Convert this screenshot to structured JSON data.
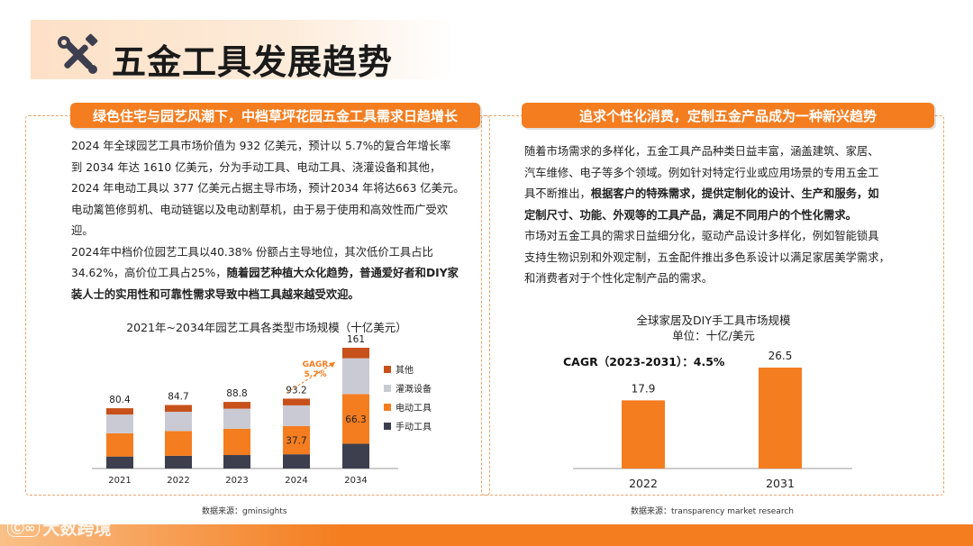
{
  "page": {
    "title": "五金工具发展趋势"
  },
  "left": {
    "header": "绿色住宅与园艺风潮下，中档草坪花园五金工具需求日趋增长",
    "lines": [
      [
        {
          "t": "2024 年全球园艺工具市场价值为 932 亿美元，预计以 5.7%的复合年增长率",
          "b": false
        }
      ],
      [
        {
          "t": "到 2034 年达 1610 亿美元，分为手动工具、电动工具、浇灌设备和其他，",
          "b": false
        }
      ],
      [
        {
          "t": "2024 年电动工具以 377 亿美元占据主导市场，预计2034 年将达663 亿美元。",
          "b": false
        }
      ],
      [
        {
          "t": "电动篱笆修剪机、电动链锯以及电动割草机，由于易于使用和高效性而广受欢",
          "b": false
        }
      ],
      [
        {
          "t": "迎。",
          "b": false
        }
      ],
      [
        {
          "t": "2024年中档价位园艺工具以40.38% 份额占主导地位，其次低价工具占比",
          "b": false
        }
      ],
      [
        {
          "t": "34.62%，高价位工具占25%，",
          "b": false
        },
        {
          "t": "随着园艺种植大众化趋势，普通爱好者和DIY家",
          "b": true
        }
      ],
      [
        {
          "t": "装人士的实用性和可靠性需求导致中档工具越来越受欢迎。",
          "b": true
        }
      ]
    ],
    "source": "数据来源：gminsights"
  },
  "right": {
    "header": "追求个性化消费，定制五金产品成为一种新兴趋势",
    "lines": [
      [
        {
          "t": "随着市场需求的多样化，五金工具产品种类日益丰富，涵盖建筑、家居、",
          "b": false
        }
      ],
      [
        {
          "t": "汽车维修、电子等多个领域。例如针对特定行业或应用场景的专用五金工",
          "b": false
        }
      ],
      [
        {
          "t": "具不断推出，",
          "b": false
        },
        {
          "t": "根据客户的特殊需求，提供定制化的设计、生产和服务，如",
          "b": true
        }
      ],
      [
        {
          "t": "定制尺寸、功能、外观等的工具产品，满足不同用户的个性化需求。",
          "b": true
        }
      ],
      [
        {
          "t": "市场对五金工具的需求日益细分化，驱动产品设计多样化，例如智能锁具",
          "b": false
        }
      ],
      [
        {
          "t": "支持生物识别和外观定制，五金配件推出多色系设计以满足家居美学需求，",
          "b": false
        }
      ],
      [
        {
          "t": "和消费者对于个性化定制产品的需求。",
          "b": false
        }
      ]
    ],
    "source": "数据来源：transparency market research"
  },
  "colors": {
    "accent": "#f47d20",
    "dark": "#3d3f4f",
    "light": "#c9cad3",
    "other": "#c8501a"
  },
  "chart_data": [
    {
      "type": "bar",
      "stacked": true,
      "title": "2021年~2034年园艺工具各类型市场规模（十亿美元）",
      "categories": [
        "2021",
        "2022",
        "2023",
        "2024",
        "2034"
      ],
      "totals": [
        80.4,
        84.7,
        88.8,
        93.2,
        161
      ],
      "total_labels": [
        "80.4",
        "84.7",
        "88.8",
        "93.2",
        "161"
      ],
      "series": [
        {
          "name": "手动工具",
          "color": "#3d3f4f",
          "values": [
            16,
            17,
            18,
            19,
            33
          ]
        },
        {
          "name": "电动工具",
          "color": "#f47d20",
          "values": [
            31,
            33,
            35,
            37.7,
            66.3
          ]
        },
        {
          "name": "灌溉设备",
          "color": "#c9cad3",
          "values": [
            25,
            25.7,
            26.8,
            27.5,
            47.7
          ]
        },
        {
          "name": "其他",
          "color": "#c8501a",
          "values": [
            8.4,
            9,
            9,
            9,
            14
          ]
        }
      ],
      "data_labels": [
        {
          "category": "2024",
          "series": "电动工具",
          "text": "37.7"
        },
        {
          "category": "2034",
          "series": "电动工具",
          "text": "66.3"
        }
      ],
      "legend_order": [
        "其他",
        "灌溉设备",
        "电动工具",
        "手动工具"
      ],
      "annotation": {
        "line1": "GAGR",
        "line2": "5.7%"
      },
      "ylim": [
        0,
        170
      ]
    },
    {
      "type": "bar",
      "title": "全球家居及DIY手工具市场规模",
      "subtitle": "单位：十亿/美元",
      "categories": [
        "2022",
        "2031"
      ],
      "values": [
        17.9,
        26.5
      ],
      "value_labels": [
        "17.9",
        "26.5"
      ],
      "annotation": "CAGR（2023-2031）：4.5%",
      "ylim": [
        0,
        27.5
      ]
    }
  ]
}
